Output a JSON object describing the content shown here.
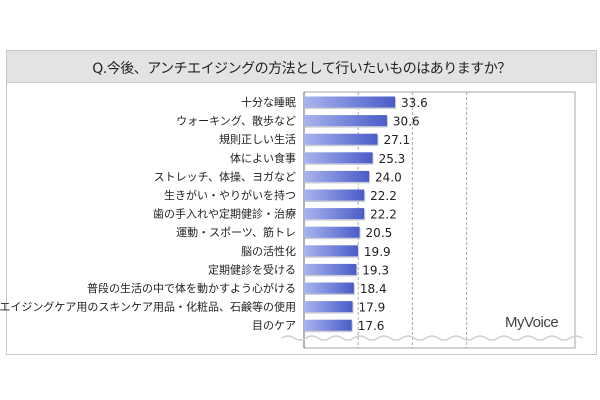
{
  "chart_data": {
    "type": "bar",
    "orientation": "horizontal",
    "title": "Q.今後、アンチエイジングの方法として行いたいものはありますか？",
    "categories": [
      "十分な睡眠",
      "ウォーキング、散歩など",
      "規則正しい生活",
      "体によい食事",
      "ストレッチ、体操、ヨガなど",
      "生きがい・やりがいを持つ",
      "歯の手入れや定期健診・治療",
      "運動・スポーツ、筋トレ",
      "脳の活性化",
      "定期健診を受ける",
      "普段の生活の中で体を動かすよう心がける",
      "エイジングケア用のスキンケア用品・化粧品、石鹸等の使用",
      "目のケア"
    ],
    "values": [
      33.6,
      30.6,
      27.1,
      25.3,
      24.0,
      22.2,
      22.2,
      20.5,
      19.9,
      19.3,
      18.4,
      17.9,
      17.6
    ],
    "value_labels": [
      "33.6",
      "30.6",
      "27.1",
      "25.3",
      "24.0",
      "22.2",
      "22.2",
      "20.5",
      "19.9",
      "19.3",
      "18.4",
      "17.9",
      "17.6"
    ],
    "xlim": [
      0,
      100
    ],
    "gridlines": [
      20,
      40,
      60
    ],
    "grid": true,
    "xlabel": "",
    "ylabel": "",
    "bar_color": "#5b6fd6"
  },
  "logo": "MyVoice"
}
